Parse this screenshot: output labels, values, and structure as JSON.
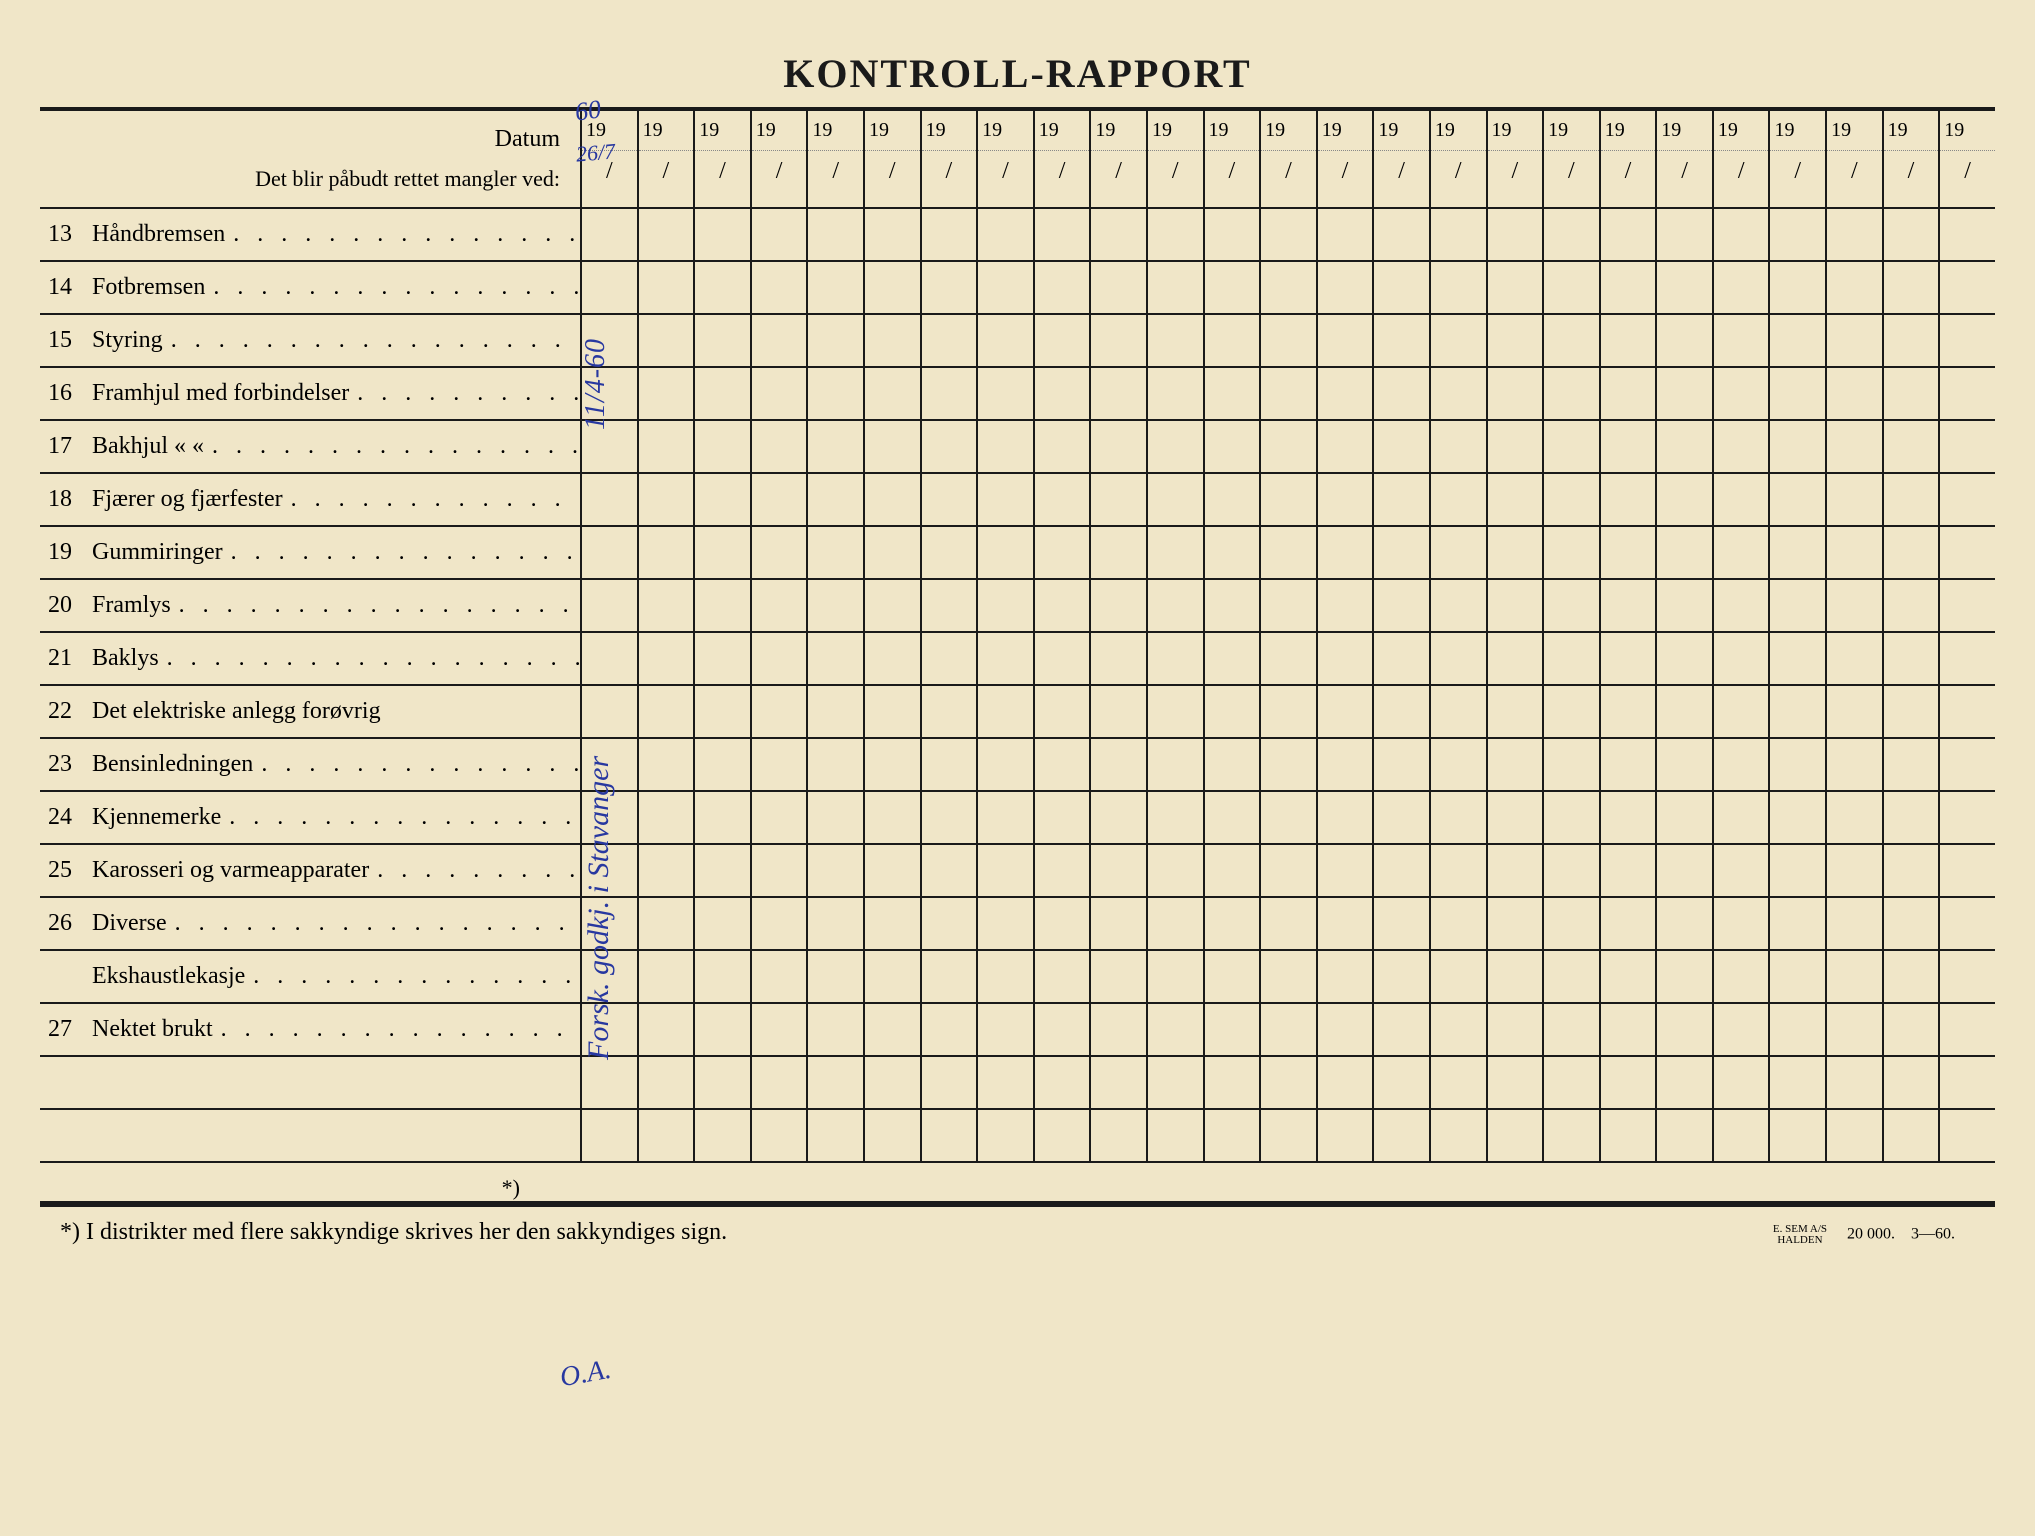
{
  "title": "KONTROLL-RAPPORT",
  "header": {
    "datum_label": "Datum",
    "mangler_label": "Det blir påbudt rettet mangler ved:",
    "year_prefix": "19",
    "slash": "/",
    "column_count": 25
  },
  "rows": [
    {
      "num": "13",
      "text": "Håndbremsen",
      "dots": true
    },
    {
      "num": "14",
      "text": "Fotbremsen",
      "dots": true
    },
    {
      "num": "15",
      "text": "Styring",
      "dots": true
    },
    {
      "num": "16",
      "text": "Framhjul med forbindelser",
      "dots": true
    },
    {
      "num": "17",
      "text": "Bakhjul        «            «",
      "dots": true
    },
    {
      "num": "18",
      "text": "Fjærer og fjærfester",
      "dots": true
    },
    {
      "num": "19",
      "text": "Gummiringer",
      "dots": true
    },
    {
      "num": "20",
      "text": "Framlys",
      "dots": true
    },
    {
      "num": "21",
      "text": "Baklys",
      "dots": true
    },
    {
      "num": "22",
      "text": "Det elektriske anlegg forøvrig",
      "dots": false
    },
    {
      "num": "23",
      "text": "Bensinledningen",
      "dots": true
    },
    {
      "num": "24",
      "text": "Kjennemerke",
      "dots": true
    },
    {
      "num": "25",
      "text": "Karosseri og varmeapparater",
      "dots": true
    },
    {
      "num": "26",
      "text": "Diverse",
      "dots": true
    },
    {
      "num": "",
      "text": "Ekshaustlekasje",
      "dots": true
    },
    {
      "num": "27",
      "text": "Nektet brukt",
      "dots": true
    },
    {
      "num": "",
      "text": "",
      "dots": false
    },
    {
      "num": "",
      "text": "",
      "dots": false
    }
  ],
  "footnote_marker": "*)",
  "footnote": "*)  I distrikter med flere sakkyndige skrives her den sakkyndiges sign.",
  "printer": {
    "small1": "E. SEM A/S",
    "small2": "HALDEN",
    "qty": "20 000.",
    "code": "3—60."
  },
  "handwriting": {
    "top_year": "60",
    "date_col1": "26/7",
    "vertical1": "11/4-60",
    "vertical2": "Forsk. godkj. i Stavanger",
    "sig": "O.A."
  },
  "colors": {
    "page_bg": "#f0e6c8",
    "line": "#1a1a1a",
    "ink": "#2838a0"
  }
}
